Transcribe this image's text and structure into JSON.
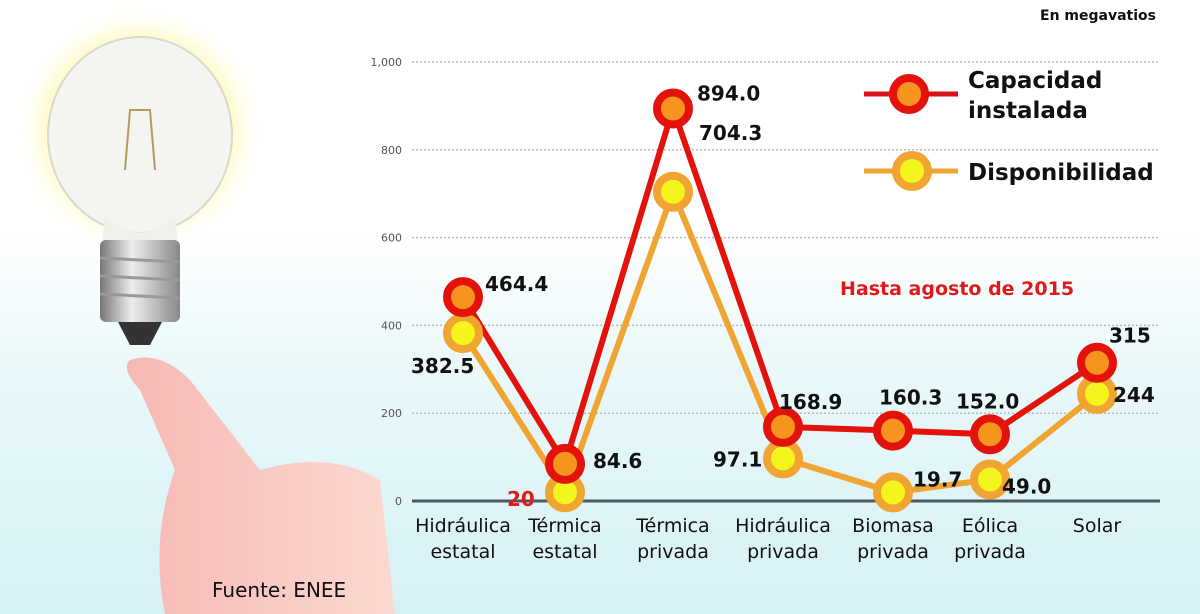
{
  "chart_data": {
    "type": "line",
    "unit_label": "En megavatios",
    "note": "Hasta agosto de 2015",
    "source": "Fuente: ENEE",
    "categories": [
      "Hidráulica estatal",
      "Térmica estatal",
      "Térmica privada",
      "Hidráulica privada",
      "Biomasa privada",
      "Eólica privada",
      "Solar"
    ],
    "series": [
      {
        "name": "Capacidad instalada",
        "values": [
          464.4,
          84.6,
          894.0,
          168.9,
          160.3,
          152.0,
          315
        ],
        "labels": [
          "464.4",
          "84.6",
          "894.0",
          "168.9",
          "160.3",
          "152.0",
          "315"
        ],
        "color": "#e3120b"
      },
      {
        "name": "Disponibilidad",
        "values": [
          382.5,
          20,
          704.3,
          97.1,
          19.7,
          49.0,
          244
        ],
        "labels": [
          "382.5",
          "20",
          "704.3",
          "97.1",
          "19.7",
          "49.0",
          "244"
        ],
        "color": "#f0a431"
      }
    ],
    "yticks": [
      "0",
      "200",
      "400",
      "600",
      "800",
      "1,000"
    ],
    "ylim": [
      0,
      1000
    ],
    "grid": true,
    "legend": "top-right"
  }
}
